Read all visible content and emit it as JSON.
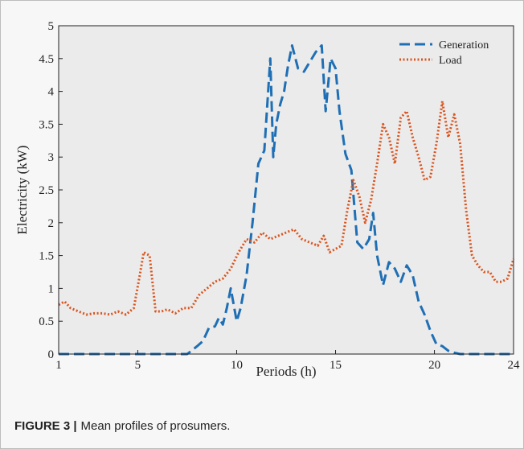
{
  "caption": {
    "label": "FIGURE 3 |",
    "text": "Mean profiles of prosumers."
  },
  "chart_data": {
    "type": "line",
    "title": "",
    "xlabel": "Periods (h)",
    "ylabel": "Electricity (kW)",
    "xlim": [
      1,
      24
    ],
    "ylim": [
      0,
      5
    ],
    "xticks": [
      1,
      5,
      10,
      15,
      20,
      24
    ],
    "yticks": [
      0,
      0.5,
      1,
      1.5,
      2,
      2.5,
      3,
      3.5,
      4,
      4.5,
      5
    ],
    "xtick_labels": [
      "1",
      "5",
      "10",
      "15",
      "20",
      "24"
    ],
    "ytick_labels": [
      "0",
      "0.5",
      "1",
      "1.5",
      "2",
      "2.5",
      "3",
      "3.5",
      "4",
      "4.5",
      "5"
    ],
    "grid": false,
    "legend_position": "top-right",
    "series": [
      {
        "name": "Generation",
        "color": "#1f6fb5",
        "style": "dashed",
        "x": [
          1,
          7.5,
          8,
          8.3,
          8.6,
          8.9,
          9.1,
          9.3,
          9.5,
          9.7,
          10,
          10.2,
          10.5,
          10.8,
          11.1,
          11.4,
          11.7,
          11.85,
          12,
          12.2,
          12.4,
          12.6,
          12.8,
          13.1,
          13.4,
          13.7,
          14,
          14.3,
          14.5,
          14.75,
          15,
          15.2,
          15.5,
          15.8,
          16.1,
          16.4,
          16.7,
          16.9,
          17.1,
          17.4,
          17.7,
          18,
          18.3,
          18.6,
          18.9,
          19.2,
          19.5,
          19.8,
          20.1,
          20.4,
          20.7,
          21,
          21.3,
          21.6,
          22,
          24
        ],
        "y": [
          0,
          0,
          0.12,
          0.2,
          0.4,
          0.42,
          0.55,
          0.45,
          0.7,
          1.0,
          0.5,
          0.7,
          1.2,
          2.0,
          2.9,
          3.1,
          4.5,
          3.0,
          3.5,
          3.8,
          4.0,
          4.4,
          4.7,
          4.35,
          4.3,
          4.45,
          4.6,
          4.7,
          3.7,
          4.5,
          4.35,
          3.7,
          3.05,
          2.8,
          1.7,
          1.6,
          1.75,
          2.15,
          1.5,
          1.05,
          1.4,
          1.3,
          1.1,
          1.35,
          1.2,
          0.8,
          0.6,
          0.35,
          0.15,
          0.12,
          0.05,
          0.02,
          0,
          0,
          0,
          0
        ]
      },
      {
        "name": "Load",
        "color": "#d9541e",
        "style": "dotted",
        "x": [
          1,
          1.3,
          1.6,
          2.0,
          2.4,
          2.8,
          3.2,
          3.6,
          4.0,
          4.4,
          4.8,
          5.1,
          5.3,
          5.6,
          5.9,
          6.2,
          6.5,
          6.9,
          7.3,
          7.7,
          8.1,
          8.5,
          8.9,
          9.3,
          9.7,
          10.1,
          10.5,
          10.9,
          11.3,
          11.7,
          12.1,
          12.5,
          12.9,
          13.3,
          13.7,
          14.1,
          14.4,
          14.7,
          15.0,
          15.3,
          15.6,
          15.9,
          16.2,
          16.5,
          16.8,
          17.1,
          17.4,
          17.7,
          18.0,
          18.3,
          18.6,
          18.9,
          19.2,
          19.5,
          19.8,
          20.1,
          20.4,
          20.7,
          21.0,
          21.3,
          21.6,
          21.9,
          22.2,
          22.5,
          22.8,
          23.1,
          23.4,
          23.7,
          24
        ],
        "y": [
          0.75,
          0.8,
          0.7,
          0.65,
          0.6,
          0.62,
          0.62,
          0.6,
          0.65,
          0.6,
          0.7,
          1.2,
          1.55,
          1.5,
          0.65,
          0.65,
          0.68,
          0.62,
          0.7,
          0.7,
          0.9,
          1.0,
          1.1,
          1.15,
          1.3,
          1.55,
          1.75,
          1.7,
          1.85,
          1.75,
          1.8,
          1.85,
          1.9,
          1.75,
          1.7,
          1.65,
          1.8,
          1.55,
          1.6,
          1.65,
          2.2,
          2.65,
          2.4,
          2.0,
          2.35,
          2.9,
          3.5,
          3.3,
          2.9,
          3.6,
          3.7,
          3.3,
          3.0,
          2.65,
          2.7,
          3.2,
          3.85,
          3.3,
          3.65,
          3.2,
          2.2,
          1.5,
          1.35,
          1.25,
          1.25,
          1.1,
          1.1,
          1.15,
          1.45
        ]
      }
    ]
  }
}
